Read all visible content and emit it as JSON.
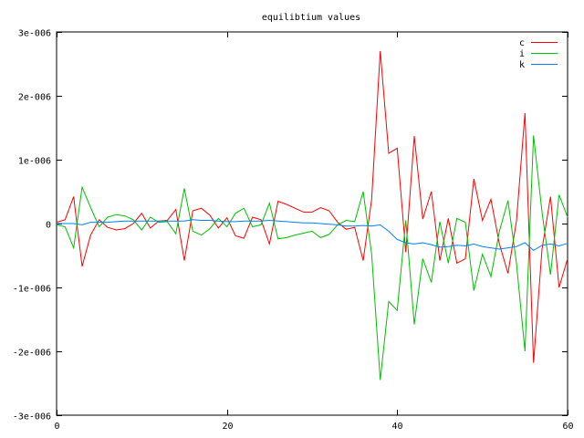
{
  "chart_data": {
    "type": "line",
    "title": "equilibtium values",
    "xlabel": "",
    "ylabel": "",
    "xlim": [
      0,
      60
    ],
    "ylim": [
      -3e-06,
      3e-06
    ],
    "x_ticks": [
      0,
      20,
      40,
      60
    ],
    "x_tick_labels": [
      "0",
      "20",
      "40",
      "60"
    ],
    "y_ticks": [
      3e-06,
      2e-06,
      1e-06,
      0,
      -1e-06,
      -2e-06,
      -3e-06
    ],
    "y_tick_labels": [
      "3e-006",
      "2e-006",
      "1e-006",
      "0",
      "-1e-006",
      "-2e-006",
      "-3e-006"
    ],
    "grid": false,
    "legend_position": "top-right",
    "x": [
      0,
      1,
      2,
      3,
      4,
      5,
      6,
      7,
      8,
      9,
      10,
      11,
      12,
      13,
      14,
      15,
      16,
      17,
      18,
      19,
      20,
      21,
      22,
      23,
      24,
      25,
      26,
      27,
      28,
      29,
      30,
      31,
      32,
      33,
      34,
      35,
      36,
      37,
      38,
      39,
      40,
      41,
      42,
      43,
      44,
      45,
      46,
      47,
      48,
      49,
      50,
      51,
      52,
      53,
      54,
      55,
      56,
      57,
      58,
      59,
      60
    ],
    "series": [
      {
        "name": "c",
        "color": "#ff0000",
        "values": [
          2e-08,
          6e-08,
          4.2e-07,
          -6.7e-07,
          -1.8e-07,
          6e-08,
          -6e-08,
          -1e-07,
          -8e-08,
          0.0,
          1.6e-07,
          -7e-08,
          4e-08,
          5e-08,
          2.2e-07,
          -5.8e-07,
          2e-07,
          2.4e-07,
          1.3e-07,
          -7e-08,
          9e-08,
          -1.9e-07,
          -2.3e-07,
          1e-07,
          6e-08,
          -3.2e-07,
          3.5e-07,
          3e-07,
          2.4e-07,
          1.8e-07,
          1.8e-07,
          2.5e-07,
          2e-07,
          2e-08,
          -9e-08,
          -6e-08,
          -5.8e-07,
          3.8e-07,
          2.7e-06,
          1.1e-06,
          1.18e-06,
          -4.5e-07,
          1.37e-06,
          7e-08,
          5e-07,
          -5.8e-07,
          8e-08,
          -6.2e-07,
          -5.5e-07,
          7e-07,
          5e-08,
          3.8e-07,
          -3.2e-07,
          -7.8e-07,
          4e-08,
          1.73e-06,
          -2.18e-06,
          -4e-07,
          4.2e-07,
          -1e-06,
          -5.5e-07
        ]
      },
      {
        "name": "i",
        "color": "#00c000",
        "values": [
          -2e-08,
          -5e-08,
          -3.8e-07,
          5.7e-07,
          2.5e-07,
          -5e-08,
          1e-07,
          1.4e-07,
          1.2e-07,
          6e-08,
          -1e-07,
          1e-07,
          2e-08,
          3e-08,
          -1.6e-07,
          5.5e-07,
          -1.2e-07,
          -1.8e-07,
          -8e-08,
          8e-08,
          -5e-08,
          1.6e-07,
          2.4e-07,
          -5e-08,
          -2e-08,
          3.2e-07,
          -2.4e-07,
          -2.2e-07,
          -1.8e-07,
          -1.5e-07,
          -1.2e-07,
          -2.2e-07,
          -1.7e-07,
          -2e-08,
          5e-08,
          3e-08,
          5e-07,
          -4.8e-07,
          -2.45e-06,
          -1.22e-06,
          -1.36e-06,
          5e-08,
          -1.58e-06,
          -5.5e-07,
          -9.2e-07,
          3e-08,
          -6.2e-07,
          8e-08,
          2e-08,
          -1.05e-06,
          -4.8e-07,
          -8.3e-07,
          -1.2e-07,
          3.6e-07,
          -6.2e-07,
          -2e-06,
          1.38e-06,
          1.8e-07,
          -8e-07,
          4.5e-07,
          1e-07
        ]
      },
      {
        "name": "k",
        "color": "#0080ff",
        "values": [
          0.0,
          0.0,
          0.0,
          -2e-08,
          2e-08,
          2e-08,
          2e-08,
          3e-08,
          4e-08,
          4e-08,
          4e-08,
          4e-08,
          4e-08,
          4e-08,
          4e-08,
          4e-08,
          6e-08,
          5e-08,
          5e-08,
          4e-08,
          3e-08,
          3e-08,
          4e-08,
          4e-08,
          4e-08,
          5e-08,
          4e-08,
          3e-08,
          2e-08,
          1e-08,
          1e-08,
          0.0,
          -1e-08,
          -2e-08,
          -4e-08,
          -4e-08,
          -3e-08,
          -4e-08,
          -2e-08,
          -1.2e-07,
          -2.5e-07,
          -3e-07,
          -3.2e-07,
          -3e-07,
          -3.3e-07,
          -3.7e-07,
          -3.6e-07,
          -3.4e-07,
          -3.5e-07,
          -3.2e-07,
          -3.6e-07,
          -3.8e-07,
          -4e-07,
          -3.8e-07,
          -3.6e-07,
          -3e-07,
          -4.2e-07,
          -3.4e-07,
          -3.2e-07,
          -3.5e-07,
          -3.1e-07
        ]
      }
    ]
  }
}
